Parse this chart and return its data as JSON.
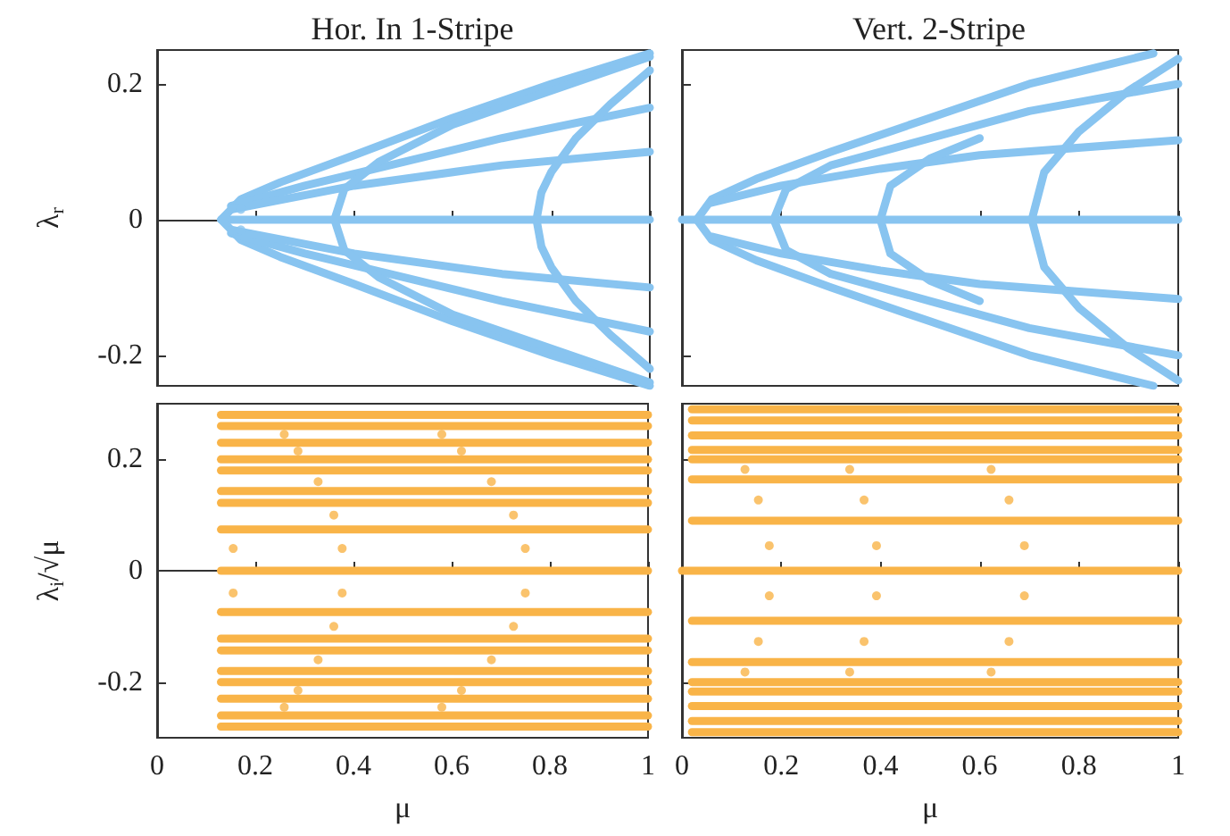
{
  "chart_data": [
    {
      "type": "line",
      "title": "Hor. In 1-Stripe",
      "ylabel": "λ$_{r}$",
      "xlim": [
        0,
        1
      ],
      "xticks": [
        0,
        0.2,
        0.4,
        0.6,
        0.8,
        1
      ],
      "ylim": [
        -0.245,
        0.25
      ],
      "yticks": [
        -0.2,
        0,
        0.2
      ],
      "tick_labels": "y",
      "series": [
        {
          "color": "#88c4f0",
          "x": [
            0.13,
            1
          ],
          "values": [
            0,
            0
          ]
        },
        {
          "color": "#88c4f0",
          "x": [
            1,
            0.8,
            0.6,
            0.4,
            0.25,
            0.17,
            0.13,
            0.17,
            0.25,
            0.4,
            0.6,
            0.8,
            1
          ],
          "values": [
            -0.245,
            -0.2,
            -0.15,
            -0.095,
            -0.055,
            -0.03,
            0,
            0.03,
            0.055,
            0.095,
            0.15,
            0.2,
            0.245
          ]
        },
        {
          "color": "#88c4f0",
          "x": [
            0.15,
            0.3,
            0.5,
            0.7,
            1
          ],
          "values": [
            0.02,
            0.05,
            0.085,
            0.12,
            0.165
          ]
        },
        {
          "color": "#88c4f0",
          "x": [
            0.15,
            0.3,
            0.5,
            0.7,
            1
          ],
          "values": [
            -0.02,
            -0.05,
            -0.085,
            -0.12,
            -0.165
          ]
        },
        {
          "color": "#88c4f0",
          "x": [
            0.15,
            0.4,
            0.7,
            1
          ],
          "values": [
            0.015,
            0.05,
            0.08,
            0.1
          ]
        },
        {
          "color": "#88c4f0",
          "x": [
            0.15,
            0.4,
            0.7,
            1
          ],
          "values": [
            -0.015,
            -0.05,
            -0.08,
            -0.1
          ]
        },
        {
          "color": "#88c4f0",
          "x": [
            1,
            0.8,
            0.6,
            0.45,
            0.38,
            0.36,
            0.38,
            0.45,
            0.6,
            0.8,
            1
          ],
          "values": [
            -0.24,
            -0.19,
            -0.14,
            -0.085,
            -0.045,
            0,
            0.045,
            0.085,
            0.14,
            0.19,
            0.24
          ]
        },
        {
          "color": "#88c4f0",
          "x": [
            1,
            0.92,
            0.85,
            0.8,
            0.78,
            0.77,
            0.78,
            0.8,
            0.85,
            0.92,
            1
          ],
          "values": [
            -0.22,
            -0.17,
            -0.12,
            -0.07,
            -0.04,
            0,
            0.04,
            0.07,
            0.12,
            0.17,
            0.22
          ]
        },
        {
          "type": "scatter",
          "color": "#88c4f0",
          "x": [
            0.17,
            0.17
          ],
          "values": [
            0.015,
            -0.015
          ]
        }
      ]
    },
    {
      "type": "line",
      "title": "Vert. 2-Stripe",
      "xlim": [
        0,
        1
      ],
      "xticks": [
        0,
        0.2,
        0.4,
        0.6,
        0.8,
        1
      ],
      "ylim": [
        -0.245,
        0.25
      ],
      "yticks": [
        -0.2,
        0,
        0.2
      ],
      "tick_labels": false,
      "series": [
        {
          "color": "#88c4f0",
          "x": [
            0,
            1
          ],
          "values": [
            0,
            0
          ]
        },
        {
          "color": "#88c4f0",
          "x": [
            0.95,
            0.7,
            0.5,
            0.3,
            0.15,
            0.06,
            0.03,
            0.06,
            0.15,
            0.3,
            0.5,
            0.7,
            0.95
          ],
          "values": [
            -0.245,
            -0.2,
            -0.15,
            -0.1,
            -0.06,
            -0.03,
            0,
            0.03,
            0.06,
            0.1,
            0.15,
            0.2,
            0.245
          ]
        },
        {
          "color": "#88c4f0",
          "x": [
            0.06,
            0.2,
            0.4,
            0.6,
            1
          ],
          "values": [
            0.025,
            0.05,
            0.075,
            0.095,
            0.117
          ]
        },
        {
          "color": "#88c4f0",
          "x": [
            0.06,
            0.2,
            0.4,
            0.6,
            1
          ],
          "values": [
            -0.025,
            -0.05,
            -0.075,
            -0.095,
            -0.117
          ]
        },
        {
          "color": "#88c4f0",
          "x": [
            1,
            0.7,
            0.5,
            0.3,
            0.21,
            0.185,
            0.21,
            0.3,
            0.5,
            0.7,
            1
          ],
          "values": [
            -0.2,
            -0.16,
            -0.12,
            -0.08,
            -0.045,
            0,
            0.045,
            0.08,
            0.12,
            0.16,
            0.2
          ]
        },
        {
          "color": "#88c4f0",
          "x": [
            0.6,
            0.5,
            0.42,
            0.4,
            0.42,
            0.5,
            0.6
          ],
          "values": [
            -0.12,
            -0.09,
            -0.05,
            0,
            0.05,
            0.09,
            0.12
          ]
        },
        {
          "color": "#88c4f0",
          "x": [
            1,
            0.9,
            0.8,
            0.73,
            0.705,
            0.73,
            0.8,
            0.9,
            1
          ],
          "values": [
            -0.237,
            -0.19,
            -0.13,
            -0.07,
            0,
            0.07,
            0.13,
            0.19,
            0.237
          ]
        }
      ]
    },
    {
      "type": "line",
      "xlabel": "μ",
      "ylabel": "λ$_{i}$/√μ",
      "xlim": [
        0,
        1
      ],
      "xticks": [
        0,
        0.2,
        0.4,
        0.6,
        0.8,
        1
      ],
      "ylim": [
        -0.3,
        0.3
      ],
      "yticks": [
        -0.2,
        0,
        0.2
      ],
      "series": [
        {
          "color": "#f9b448",
          "x": [
            0.13,
            1
          ],
          "values": [
            0.28,
            0.28
          ]
        },
        {
          "color": "#f9b448",
          "x": [
            0.13,
            1
          ],
          "values": [
            0.26,
            0.26
          ]
        },
        {
          "color": "#f9b448",
          "x": [
            0.13,
            1
          ],
          "values": [
            0.23,
            0.23
          ]
        },
        {
          "color": "#f9b448",
          "x": [
            0.13,
            1
          ],
          "values": [
            0.2,
            0.2
          ]
        },
        {
          "color": "#f9b448",
          "x": [
            0.13,
            1
          ],
          "values": [
            0.18,
            0.18
          ]
        },
        {
          "color": "#f9b448",
          "x": [
            0.13,
            1
          ],
          "values": [
            0.143,
            0.143
          ]
        },
        {
          "color": "#f9b448",
          "x": [
            0.13,
            1
          ],
          "values": [
            0.122,
            0.122
          ]
        },
        {
          "color": "#f9b448",
          "x": [
            0.13,
            1
          ],
          "values": [
            0.074,
            0.074
          ]
        },
        {
          "color": "#f9b448",
          "x": [
            0.13,
            1
          ],
          "values": [
            0,
            0
          ]
        },
        {
          "color": "#f9b448",
          "x": [
            0.13,
            1
          ],
          "values": [
            -0.074,
            -0.074
          ]
        },
        {
          "color": "#f9b448",
          "x": [
            0.13,
            1
          ],
          "values": [
            -0.122,
            -0.122
          ]
        },
        {
          "color": "#f9b448",
          "x": [
            0.13,
            1
          ],
          "values": [
            -0.143,
            -0.143
          ]
        },
        {
          "color": "#f9b448",
          "x": [
            0.13,
            1
          ],
          "values": [
            -0.18,
            -0.18
          ]
        },
        {
          "color": "#f9b448",
          "x": [
            0.13,
            1
          ],
          "values": [
            -0.2,
            -0.2
          ]
        },
        {
          "color": "#f9b448",
          "x": [
            0.13,
            1
          ],
          "values": [
            -0.23,
            -0.23
          ]
        },
        {
          "color": "#f9b448",
          "x": [
            0.13,
            1
          ],
          "values": [
            -0.26,
            -0.26
          ]
        },
        {
          "color": "#f9b448",
          "x": [
            0.13,
            1
          ],
          "values": [
            -0.28,
            -0.28
          ]
        },
        {
          "type": "scatter",
          "color": "#f9b448",
          "x": [
            0.259,
            0.287,
            0.328,
            0.36,
            0.377,
            0.377,
            0.36,
            0.328,
            0.287,
            0.259
          ],
          "values": [
            0.245,
            0.215,
            0.16,
            0.1,
            0.04,
            -0.04,
            -0.1,
            -0.16,
            -0.215,
            -0.245
          ]
        },
        {
          "type": "scatter",
          "color": "#f9b448",
          "x": [
            0.58,
            0.62,
            0.681,
            0.726,
            0.75,
            0.75,
            0.726,
            0.681,
            0.62,
            0.58
          ],
          "values": [
            0.245,
            0.215,
            0.16,
            0.1,
            0.04,
            -0.04,
            -0.1,
            -0.16,
            -0.215,
            -0.245
          ]
        },
        {
          "type": "scatter",
          "color": "#f9b448",
          "x": [
            0.155,
            0.155
          ],
          "values": [
            0.04,
            -0.04
          ]
        }
      ]
    },
    {
      "type": "line",
      "xlabel": "μ",
      "xlim": [
        0,
        1
      ],
      "xticks": [
        0,
        0.2,
        0.4,
        0.6,
        0.8,
        1
      ],
      "ylim": [
        -0.3,
        0.3
      ],
      "yticks": [
        -0.2,
        0,
        0.2
      ],
      "tick_labels": "x",
      "series": [
        {
          "color": "#f9b448",
          "x": [
            0.02,
            1
          ],
          "values": [
            0.29,
            0.29
          ]
        },
        {
          "color": "#f9b448",
          "x": [
            0.02,
            1
          ],
          "values": [
            0.27,
            0.27
          ]
        },
        {
          "color": "#f9b448",
          "x": [
            0.02,
            1
          ],
          "values": [
            0.243,
            0.243
          ]
        },
        {
          "color": "#f9b448",
          "x": [
            0.02,
            1
          ],
          "values": [
            0.217,
            0.217
          ]
        },
        {
          "color": "#f9b448",
          "x": [
            0.02,
            1
          ],
          "values": [
            0.2,
            0.2
          ]
        },
        {
          "color": "#f9b448",
          "x": [
            0.02,
            1
          ],
          "values": [
            0.164,
            0.164
          ]
        },
        {
          "color": "#f9b448",
          "x": [
            0.02,
            1
          ],
          "values": [
            0.09,
            0.09
          ]
        },
        {
          "color": "#f9b448",
          "x": [
            0,
            1
          ],
          "values": [
            0,
            0
          ]
        },
        {
          "color": "#f9b448",
          "x": [
            0.02,
            1
          ],
          "values": [
            -0.09,
            -0.09
          ]
        },
        {
          "color": "#f9b448",
          "x": [
            0.02,
            1
          ],
          "values": [
            -0.164,
            -0.164
          ]
        },
        {
          "color": "#f9b448",
          "x": [
            0.02,
            1
          ],
          "values": [
            -0.2,
            -0.2
          ]
        },
        {
          "color": "#f9b448",
          "x": [
            0.02,
            1
          ],
          "values": [
            -0.217,
            -0.217
          ]
        },
        {
          "color": "#f9b448",
          "x": [
            0.02,
            1
          ],
          "values": [
            -0.243,
            -0.243
          ]
        },
        {
          "color": "#f9b448",
          "x": [
            0.02,
            1
          ],
          "values": [
            -0.27,
            -0.27
          ]
        },
        {
          "color": "#f9b448",
          "x": [
            0.02,
            1
          ],
          "values": [
            -0.29,
            -0.29
          ]
        },
        {
          "type": "scatter",
          "color": "#f9b448",
          "x": [
            0.127,
            0.154,
            0.176,
            0.176,
            0.154,
            0.127
          ],
          "values": [
            0.182,
            0.127,
            0.045,
            -0.045,
            -0.127,
            -0.182
          ]
        },
        {
          "type": "scatter",
          "color": "#f9b448",
          "x": [
            0.338,
            0.367,
            0.392,
            0.392,
            0.367,
            0.338
          ],
          "values": [
            0.182,
            0.127,
            0.045,
            -0.045,
            -0.127,
            -0.182
          ]
        },
        {
          "type": "scatter",
          "color": "#f9b448",
          "x": [
            0.623,
            0.659,
            0.69,
            0.69,
            0.659,
            0.623
          ],
          "values": [
            0.182,
            0.127,
            0.045,
            -0.045,
            -0.127,
            -0.182
          ]
        }
      ]
    }
  ]
}
